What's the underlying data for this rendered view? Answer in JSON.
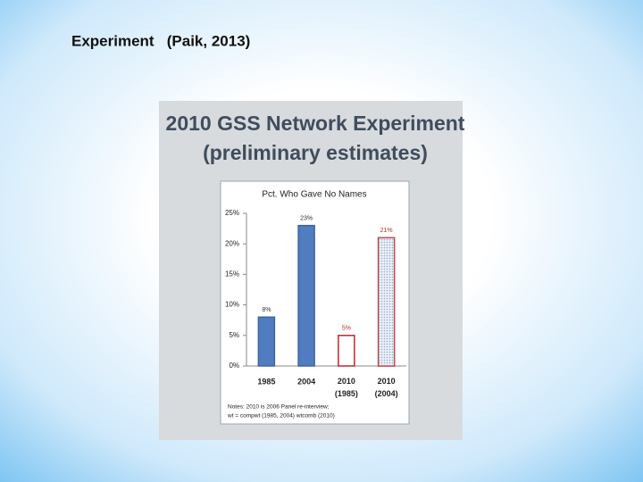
{
  "slide_title": "Experiment   (Paik, 2013)",
  "chart_data": {
    "type": "bar",
    "title": "2010 GSS Network Experiment",
    "subtitle": "(preliminary estimates)",
    "plot_title": "Pct. Who Gave No Names",
    "categories": [
      "1985",
      "2004",
      "2010\n(1985)",
      "2010\n(2004)"
    ],
    "values": [
      8,
      23,
      5,
      21
    ],
    "value_labels": [
      "8%",
      "23%",
      "5%",
      "21%"
    ],
    "colors": [
      "#4f7dbf",
      "#4f7dbf",
      "#ffffff",
      "#c9d8ec"
    ],
    "edge_colors": [
      "#3d64a0",
      "#3d64a0",
      "#c0272d",
      "#c0272d"
    ],
    "label_colors": [
      "#333333",
      "#333333",
      "#c0272d",
      "#c0272d"
    ],
    "ylim": [
      0,
      25
    ],
    "yticks": [
      {
        "value": 0,
        "label": "0%"
      },
      {
        "value": 5,
        "label": "5%"
      },
      {
        "value": 10,
        "label": "10%"
      },
      {
        "value": 15,
        "label": "15%"
      },
      {
        "value": 20,
        "label": "20%"
      },
      {
        "value": 25,
        "label": "25%"
      }
    ],
    "notes": [
      "Notes: 2010 is 2006 Panel re-interview;",
      "wt = compwt (1985, 2004) wtcomb (2010)"
    ]
  }
}
